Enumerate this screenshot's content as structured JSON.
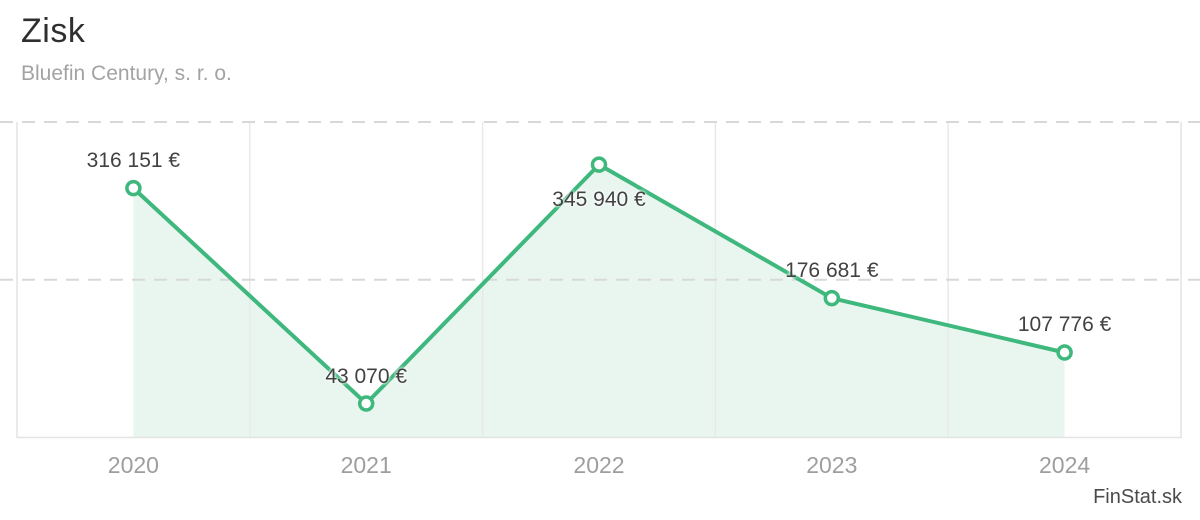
{
  "header": {
    "title": "Zisk",
    "subtitle": "Bluefin Century, s. r. o."
  },
  "watermark": "FinStat.sk",
  "colors": {
    "line": "#3eb87d",
    "area_fill": "#e9f6f0",
    "marker_fill": "#ffffff",
    "grid_dashed": "#d8d8d8",
    "grid_vertical": "#e9e9e9",
    "plot_border": "#e4e4e4",
    "value_label": "#424242",
    "axis_label": "#9e9e9e"
  },
  "chart_data": {
    "type": "line",
    "title": "Zisk",
    "subtitle": "Bluefin Century, s. r. o.",
    "categories": [
      "2020",
      "2021",
      "2022",
      "2023",
      "2024"
    ],
    "series": [
      {
        "name": "Zisk",
        "values": [
          316151,
          43070,
          345940,
          176681,
          107776
        ]
      }
    ],
    "point_labels": [
      "316 151 €",
      "43 070 €",
      "345 940 €",
      "176 681 €",
      "107 776 €"
    ],
    "label_positions": [
      "above",
      "above",
      "below",
      "above",
      "above"
    ],
    "ylabel": "",
    "xlabel": "",
    "ylim": [
      0,
      400000
    ],
    "gridlines_y": [
      200000,
      400000
    ],
    "grid": "horizontal-dashed-full-width, vertical-solid-band-separators",
    "legend": "none",
    "area": true,
    "currency": "EUR",
    "watermark": "FinStat.sk"
  }
}
